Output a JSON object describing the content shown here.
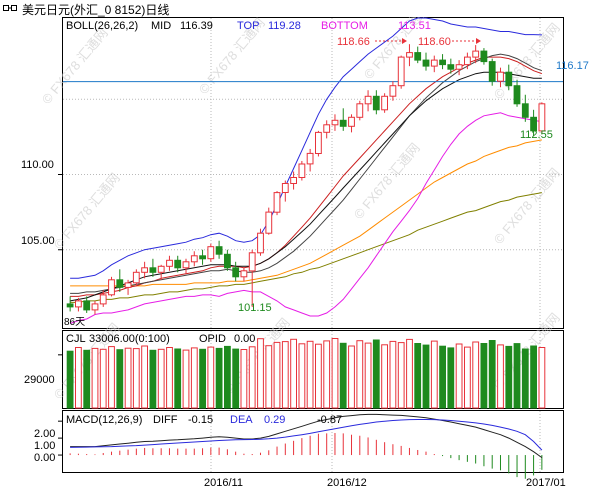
{
  "window": {
    "title": "美元日元(外汇_0 8152)日线"
  },
  "price_panel": {
    "indicator_name": "BOLL(26,26,2)",
    "mid_label": "MID",
    "mid_value": "116.39",
    "top_label": "TOP",
    "top_value": "119.28",
    "bottom_label": "BOTTOM",
    "bottom_value": "113.51",
    "y_ticks": [
      "110.00",
      "105.00"
    ],
    "callouts": [
      "118.66",
      "118.60",
      "116.17",
      "112.55",
      "101.15"
    ],
    "period_label": "86天",
    "watermark": "© FX678 汇通网"
  },
  "volume_panel": {
    "indicator_name": "CJL",
    "cjl_value": "33006.00(0:100)",
    "opid_label": "OPID",
    "opid_value": "0.00",
    "y_ticks": [
      "29000"
    ]
  },
  "macd_panel": {
    "indicator_name": "MACD(12,26,9)",
    "diff_label": "DIFF",
    "diff_value": "-0.15",
    "dea_label": "DEA",
    "dea_value": "0.29",
    "macd_value": "-0.87",
    "y_ticks": [
      "2.00",
      "1.00",
      "0.00"
    ]
  },
  "x_axis": {
    "labels": [
      "2016/11",
      "2016/12",
      "2017/01"
    ]
  },
  "colors": {
    "up": "#e8323a",
    "down": "#1e8a1e",
    "boll_top": "#2a2adc",
    "boll_mid": "#111111",
    "boll_bottom": "#e61ee6",
    "ma_long": "#808000",
    "ma_mid": "#ff8c00",
    "ma_red": "#cc2020",
    "horizontal_line": "#1e78c8",
    "callout_red": "#e8323a",
    "callout_green": "#1e8a1e",
    "callout_blue": "#1e78c8",
    "boll_label_blue": "#2a2adc",
    "boll_label_magenta": "#e61ee6"
  },
  "chart_data": {
    "type": "candlestick",
    "ylim": [
      99.8,
      120.4
    ],
    "candles": [
      [
        101.4,
        101.9,
        100.9,
        101.2
      ],
      [
        101.2,
        101.8,
        100.9,
        101.6
      ],
      [
        101.6,
        101.9,
        100.8,
        101.0
      ],
      [
        101.0,
        101.6,
        100.7,
        101.4
      ],
      [
        101.4,
        102.3,
        101.2,
        102.0
      ],
      [
        102.0,
        103.2,
        101.9,
        103.0
      ],
      [
        103.0,
        103.7,
        102.2,
        102.5
      ],
      [
        102.5,
        103.0,
        102.0,
        102.8
      ],
      [
        102.8,
        103.7,
        102.6,
        103.5
      ],
      [
        103.5,
        104.2,
        103.1,
        103.8
      ],
      [
        103.8,
        104.4,
        103.2,
        103.5
      ],
      [
        103.5,
        104.0,
        103.0,
        103.9
      ],
      [
        103.9,
        104.6,
        103.6,
        104.3
      ],
      [
        104.3,
        104.6,
        103.5,
        103.8
      ],
      [
        103.8,
        104.4,
        103.4,
        104.2
      ],
      [
        104.2,
        104.9,
        103.9,
        104.6
      ],
      [
        104.6,
        105.0,
        104.0,
        104.4
      ],
      [
        104.4,
        105.4,
        104.2,
        105.2
      ],
      [
        105.2,
        105.6,
        104.4,
        104.7
      ],
      [
        104.7,
        105.0,
        103.6,
        103.8
      ],
      [
        103.8,
        104.2,
        102.9,
        103.2
      ],
      [
        103.2,
        103.8,
        102.9,
        103.6
      ],
      [
        103.6,
        105.0,
        101.2,
        104.8
      ],
      [
        104.8,
        106.4,
        104.6,
        106.1
      ],
      [
        106.1,
        107.8,
        106.0,
        107.5
      ],
      [
        107.5,
        108.9,
        107.3,
        108.8
      ],
      [
        108.8,
        109.6,
        108.2,
        109.4
      ],
      [
        109.4,
        110.2,
        109.0,
        109.8
      ],
      [
        109.8,
        110.9,
        109.6,
        110.7
      ],
      [
        110.7,
        111.7,
        110.2,
        111.4
      ],
      [
        111.4,
        112.9,
        111.2,
        112.8
      ],
      [
        112.8,
        113.6,
        112.4,
        113.3
      ],
      [
        113.3,
        114.0,
        112.9,
        113.6
      ],
      [
        113.6,
        114.4,
        112.9,
        113.2
      ],
      [
        113.2,
        114.0,
        112.8,
        113.8
      ],
      [
        113.8,
        114.9,
        113.6,
        114.7
      ],
      [
        114.7,
        115.6,
        114.2,
        115.2
      ],
      [
        115.2,
        115.6,
        114.0,
        114.3
      ],
      [
        114.3,
        115.4,
        114.1,
        115.2
      ],
      [
        115.2,
        116.2,
        114.9,
        115.9
      ],
      [
        115.9,
        117.9,
        115.7,
        117.8
      ],
      [
        117.8,
        118.66,
        117.2,
        118.1
      ],
      [
        118.1,
        118.5,
        117.4,
        117.6
      ],
      [
        117.6,
        118.1,
        116.9,
        117.2
      ],
      [
        117.2,
        117.9,
        116.8,
        117.6
      ],
      [
        117.6,
        118.0,
        117.0,
        117.3
      ],
      [
        117.3,
        117.7,
        116.7,
        117.0
      ],
      [
        117.0,
        117.6,
        116.6,
        117.3
      ],
      [
        117.3,
        118.1,
        117.0,
        117.8
      ],
      [
        117.8,
        118.6,
        117.4,
        118.2
      ],
      [
        118.2,
        118.4,
        117.3,
        117.5
      ],
      [
        117.5,
        117.7,
        115.9,
        116.2
      ],
      [
        116.2,
        117.1,
        115.8,
        116.8
      ],
      [
        116.8,
        117.3,
        115.6,
        115.9
      ],
      [
        115.9,
        116.3,
        114.5,
        114.7
      ],
      [
        114.7,
        115.3,
        113.5,
        113.8
      ],
      [
        113.8,
        114.3,
        112.55,
        112.9
      ],
      [
        112.9,
        114.8,
        112.7,
        114.7
      ]
    ],
    "boll_top": [
      103.1,
      103.1,
      103.2,
      103.3,
      103.6,
      104.0,
      104.3,
      104.6,
      104.8,
      105.0,
      105.1,
      105.2,
      105.3,
      105.4,
      105.5,
      105.7,
      105.8,
      106.0,
      106.1,
      105.9,
      105.6,
      105.5,
      105.6,
      106.0,
      106.9,
      108.0,
      109.2,
      110.4,
      111.6,
      112.8,
      114.0,
      115.0,
      115.8,
      116.5,
      117.0,
      117.5,
      118.0,
      118.4,
      118.8,
      119.2,
      119.7,
      120.2,
      120.4,
      120.4,
      120.3,
      120.2,
      120.0,
      119.9,
      119.8,
      119.8,
      119.7,
      119.6,
      119.5,
      119.5,
      119.4,
      119.3,
      119.3,
      119.28
    ],
    "boll_mid": [
      101.6,
      101.7,
      101.8,
      102.0,
      102.2,
      102.4,
      102.6,
      102.8,
      103.0,
      103.2,
      103.3,
      103.4,
      103.5,
      103.6,
      103.7,
      103.8,
      103.9,
      104.0,
      104.0,
      104.0,
      103.9,
      103.9,
      103.9,
      104.1,
      104.4,
      104.8,
      105.2,
      105.7,
      106.2,
      106.7,
      107.3,
      107.9,
      108.5,
      109.1,
      109.7,
      110.3,
      110.9,
      111.5,
      112.1,
      112.7,
      113.3,
      113.9,
      114.4,
      114.9,
      115.3,
      115.7,
      116.0,
      116.3,
      116.5,
      116.7,
      116.8,
      116.8,
      116.8,
      116.7,
      116.6,
      116.5,
      116.4,
      116.39
    ],
    "boll_bottom": [
      100.1,
      100.3,
      100.4,
      100.7,
      100.8,
      100.8,
      100.9,
      101.0,
      101.2,
      101.4,
      101.5,
      101.6,
      101.7,
      101.8,
      101.9,
      101.9,
      102.0,
      102.0,
      101.9,
      102.1,
      102.2,
      102.3,
      102.2,
      102.2,
      101.9,
      101.6,
      101.2,
      101.0,
      100.8,
      100.6,
      100.6,
      100.8,
      101.2,
      101.7,
      102.4,
      103.1,
      103.8,
      104.6,
      105.4,
      106.2,
      106.9,
      107.6,
      108.4,
      109.4,
      110.3,
      111.2,
      112.0,
      112.7,
      113.2,
      113.6,
      113.9,
      114.0,
      114.1,
      113.9,
      113.8,
      113.7,
      113.6,
      113.51
    ],
    "ma_long": [
      101.5,
      101.5,
      101.6,
      101.6,
      101.7,
      101.7,
      101.8,
      101.8,
      101.9,
      102.0,
      102.0,
      102.1,
      102.2,
      102.2,
      102.3,
      102.4,
      102.4,
      102.5,
      102.6,
      102.6,
      102.7,
      102.7,
      102.8,
      102.9,
      103.0,
      103.1,
      103.2,
      103.4,
      103.5,
      103.7,
      103.8,
      104.0,
      104.2,
      104.4,
      104.6,
      104.8,
      105.0,
      105.2,
      105.4,
      105.6,
      105.8,
      106.0,
      106.3,
      106.5,
      106.7,
      106.9,
      107.1,
      107.3,
      107.5,
      107.6,
      107.8,
      108.0,
      108.2,
      108.3,
      108.5,
      108.6,
      108.7,
      108.8
    ],
    "ma_mid": [
      102.6,
      102.6,
      102.6,
      102.6,
      102.6,
      102.6,
      102.6,
      102.6,
      102.6,
      102.6,
      102.7,
      102.7,
      102.7,
      102.7,
      102.7,
      102.8,
      102.8,
      102.8,
      102.8,
      102.9,
      102.9,
      102.9,
      103.0,
      103.1,
      103.2,
      103.3,
      103.5,
      103.7,
      103.9,
      104.1,
      104.4,
      104.7,
      105.0,
      105.3,
      105.6,
      105.9,
      106.3,
      106.7,
      107.1,
      107.5,
      107.9,
      108.3,
      108.7,
      109.1,
      109.5,
      109.8,
      110.1,
      110.4,
      110.7,
      110.9,
      111.2,
      111.4,
      111.6,
      111.8,
      111.9,
      112.1,
      112.2,
      112.3
    ],
    "ma_red": [
      101.9,
      101.9,
      102.0,
      102.0,
      102.1,
      102.2,
      102.3,
      102.5,
      102.6,
      102.8,
      102.9,
      103.1,
      103.2,
      103.3,
      103.4,
      103.5,
      103.6,
      103.8,
      103.9,
      103.9,
      103.9,
      103.8,
      103.9,
      104.1,
      104.4,
      104.8,
      105.3,
      105.9,
      106.5,
      107.1,
      107.8,
      108.5,
      109.2,
      109.9,
      110.5,
      111.1,
      111.7,
      112.3,
      112.9,
      113.5,
      114.1,
      114.7,
      115.2,
      115.7,
      116.1,
      116.5,
      116.8,
      117.1,
      117.4,
      117.6,
      117.8,
      117.8,
      117.8,
      117.7,
      117.5,
      117.2,
      116.9,
      116.7
    ],
    "ma_black": [
      102.1,
      102.1,
      102.2,
      102.2,
      102.3,
      102.4,
      102.5,
      102.6,
      102.7,
      102.8,
      102.9,
      103.0,
      103.1,
      103.2,
      103.3,
      103.4,
      103.5,
      103.6,
      103.6,
      103.7,
      103.6,
      103.5,
      103.5,
      103.6,
      103.8,
      104.1,
      104.5,
      104.9,
      105.4,
      105.9,
      106.5,
      107.1,
      107.7,
      108.3,
      109.0,
      109.7,
      110.4,
      111.1,
      111.8,
      112.5,
      113.2,
      113.9,
      114.5,
      115.1,
      115.6,
      116.1,
      116.5,
      116.9,
      117.2,
      117.5,
      117.7,
      117.9,
      118.0,
      117.9,
      117.7,
      117.4,
      117.1,
      116.9
    ],
    "horizontal_level": 116.17,
    "volume": {
      "ylim": [
        0,
        42000
      ],
      "values": [
        31000,
        33000,
        31500,
        32500,
        32000,
        33500,
        31800,
        32600,
        32400,
        33800,
        31500,
        32000,
        33000,
        32200,
        31600,
        32800,
        32000,
        33200,
        32500,
        33600,
        32100,
        31900,
        33400,
        37800,
        34000,
        35800,
        36200,
        37500,
        35000,
        36400,
        34800,
        36600,
        37900,
        35300,
        33800,
        36700,
        35400,
        37100,
        34500,
        36300,
        35700,
        37400,
        35200,
        34300,
        36500,
        33700,
        32800,
        34900,
        33200,
        36000,
        35200,
        36800,
        34400,
        33600,
        35100,
        32200,
        33800,
        33006
      ]
    },
    "macd": {
      "ylim": [
        -1.0,
        2.6
      ],
      "diff": [
        0.5,
        0.5,
        0.5,
        0.5,
        0.55,
        0.6,
        0.65,
        0.7,
        0.75,
        0.8,
        0.82,
        0.85,
        0.88,
        0.9,
        0.93,
        0.96,
        1.0,
        1.05,
        1.08,
        1.05,
        1.0,
        0.95,
        0.95,
        1.0,
        1.1,
        1.25,
        1.4,
        1.55,
        1.7,
        1.85,
        2.0,
        2.1,
        2.2,
        2.28,
        2.33,
        2.38,
        2.4,
        2.4,
        2.38,
        2.36,
        2.34,
        2.3,
        2.25,
        2.2,
        2.12,
        2.04,
        1.95,
        1.85,
        1.75,
        1.65,
        1.5,
        1.35,
        1.2,
        1.0,
        0.75,
        0.5,
        0.2,
        -0.15
      ],
      "dea": [
        0.45,
        0.46,
        0.47,
        0.48,
        0.49,
        0.5,
        0.52,
        0.54,
        0.56,
        0.59,
        0.62,
        0.65,
        0.68,
        0.71,
        0.74,
        0.77,
        0.8,
        0.83,
        0.86,
        0.88,
        0.9,
        0.91,
        0.92,
        0.93,
        0.96,
        1.0,
        1.06,
        1.13,
        1.2,
        1.28,
        1.37,
        1.46,
        1.55,
        1.64,
        1.73,
        1.81,
        1.88,
        1.95,
        2.0,
        2.04,
        2.07,
        2.09,
        2.1,
        2.1,
        2.09,
        2.07,
        2.04,
        2.0,
        1.95,
        1.9,
        1.83,
        1.75,
        1.65,
        1.54,
        1.4,
        1.2,
        0.8,
        0.29
      ],
      "hist": [
        0.1,
        0.08,
        0.06,
        0.04,
        0.12,
        0.2,
        0.26,
        0.32,
        0.38,
        0.42,
        0.4,
        0.4,
        0.4,
        0.38,
        0.38,
        0.38,
        0.4,
        0.44,
        0.44,
        0.34,
        0.2,
        0.08,
        0.06,
        0.14,
        0.28,
        0.5,
        0.68,
        0.84,
        1.0,
        1.14,
        1.26,
        1.28,
        1.3,
        1.28,
        1.2,
        1.14,
        1.04,
        0.9,
        0.76,
        0.64,
        0.54,
        0.42,
        0.3,
        0.2,
        0.06,
        -0.06,
        -0.18,
        -0.3,
        -0.4,
        -0.5,
        -0.66,
        -0.8,
        -0.9,
        -1.08,
        -1.3,
        -1.4,
        -1.2,
        -0.87
      ]
    }
  }
}
